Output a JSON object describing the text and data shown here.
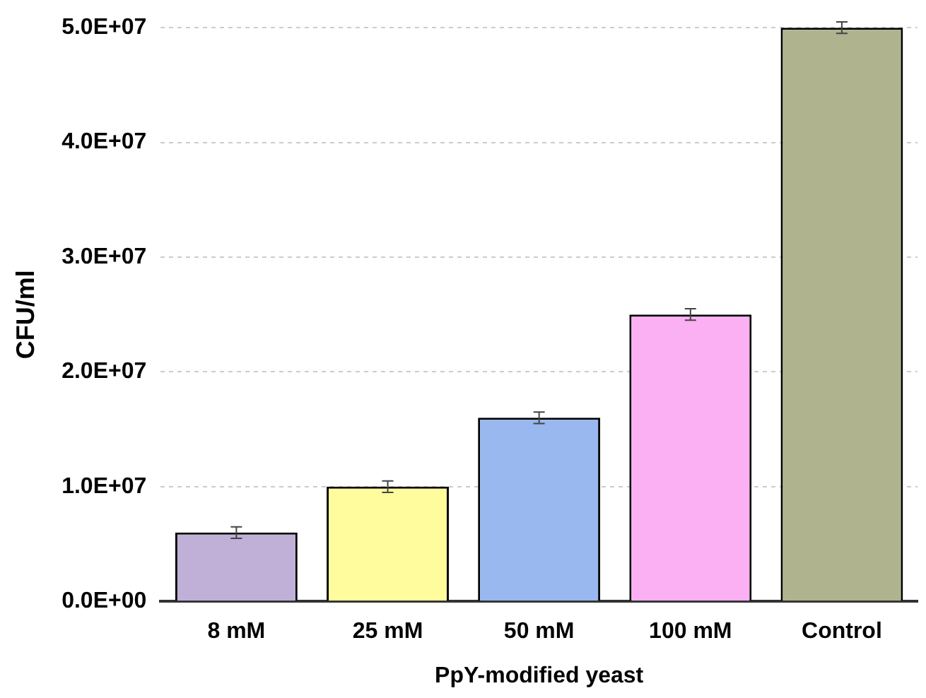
{
  "chart_data": {
    "type": "bar",
    "xlabel": "PpY-modified yeast",
    "ylabel": "CFU/ml",
    "categories": [
      "8 mM",
      "25 mM",
      "50 mM",
      "100 mM",
      "Control"
    ],
    "values": [
      6000000,
      10000000,
      16000000,
      25000000,
      50000000
    ],
    "errors": [
      500000,
      500000,
      500000,
      500000,
      500000
    ],
    "colors": [
      "#c0b0d8",
      "#fefc9c",
      "#99b8f0",
      "#fcb0f4",
      "#b0b48e"
    ],
    "ylim": [
      0,
      50000000
    ],
    "yticks": [
      {
        "value": 0,
        "label": "0.0E+00"
      },
      {
        "value": 10000000,
        "label": "1.0E+07"
      },
      {
        "value": 20000000,
        "label": "2.0E+07"
      },
      {
        "value": 30000000,
        "label": "3.0E+07"
      },
      {
        "value": 40000000,
        "label": "4.0E+07"
      },
      {
        "value": 50000000,
        "label": "5.0E+07"
      }
    ],
    "grid": "y"
  }
}
